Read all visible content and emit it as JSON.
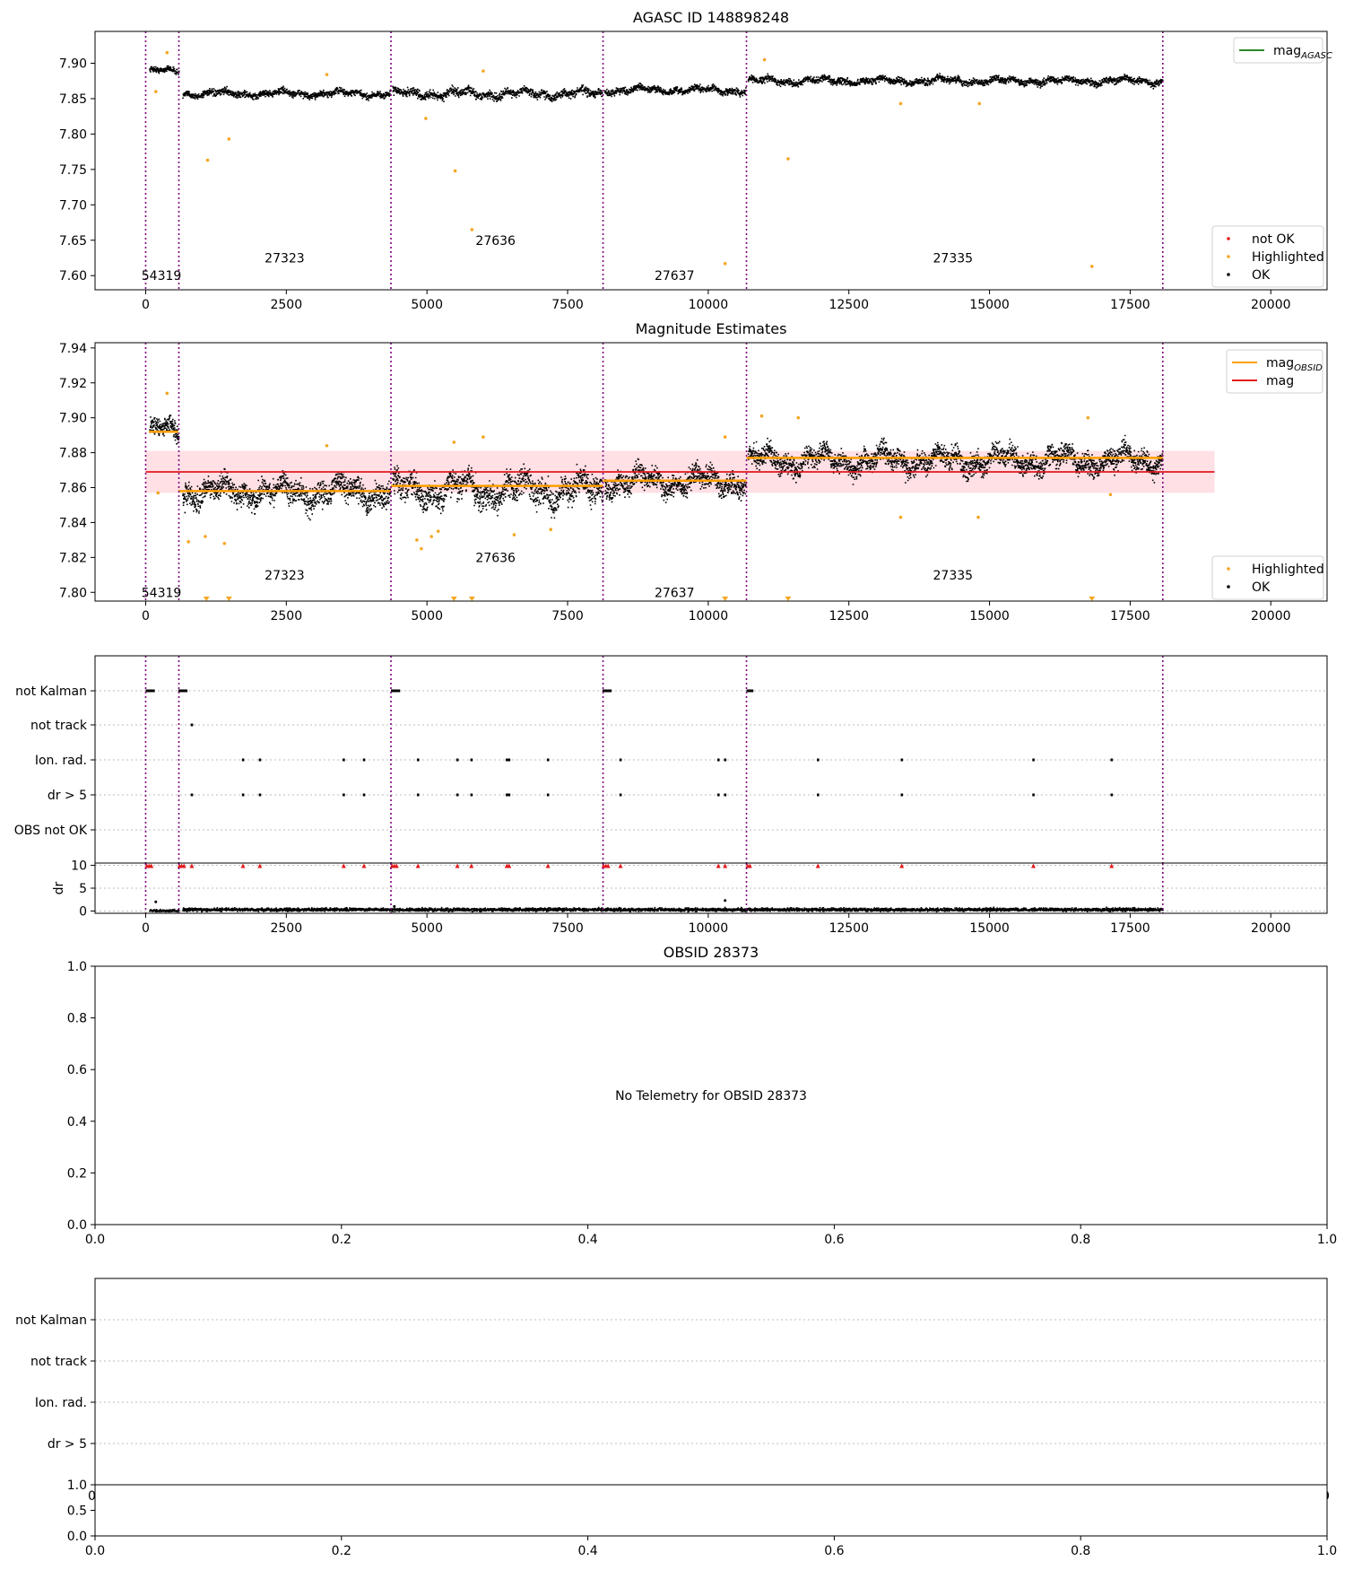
{
  "chart_data": [
    {
      "panel": "agasc",
      "type": "scatter",
      "title": "AGASC ID 148898248",
      "xlim": [
        -900,
        21000
      ],
      "ylim": [
        7.58,
        7.945
      ],
      "xticks": [
        0,
        2500,
        5000,
        7500,
        10000,
        12500,
        15000,
        17500,
        20000
      ],
      "yticks": [
        7.6,
        7.65,
        7.7,
        7.75,
        7.8,
        7.85,
        7.9
      ],
      "ytick_labels": [
        "7.60",
        "7.65",
        "7.70",
        "7.75",
        "7.80",
        "7.85",
        "7.90"
      ],
      "obs_boundaries": [
        0,
        590,
        4360,
        8130,
        10680,
        18080
      ],
      "obsid_labels": [
        {
          "text": "54319",
          "x": 280,
          "y": 7.6
        },
        {
          "text": "27323",
          "x": 2470,
          "y": 7.625
        },
        {
          "text": "27636",
          "x": 6220,
          "y": 7.65
        },
        {
          "text": "27637",
          "x": 9400,
          "y": 7.6
        },
        {
          "text": "27335",
          "x": 14350,
          "y": 7.625
        }
      ],
      "segments": [
        {
          "x0": 60,
          "x1": 580,
          "level": 7.89,
          "spread": 0.007
        },
        {
          "x0": 650,
          "x1": 4340,
          "level": 7.858,
          "spread": 0.008
        },
        {
          "x0": 4380,
          "x1": 8110,
          "level": 7.858,
          "spread": 0.01
        },
        {
          "x0": 8150,
          "x1": 10660,
          "level": 7.863,
          "spread": 0.008
        },
        {
          "x0": 10700,
          "x1": 18070,
          "level": 7.876,
          "spread": 0.008
        }
      ],
      "highlighted_points": [
        {
          "x": 1100,
          "y": 7.763
        },
        {
          "x": 1480,
          "y": 7.793
        },
        {
          "x": 5500,
          "y": 7.748
        },
        {
          "x": 5800,
          "y": 7.665
        },
        {
          "x": 10300,
          "y": 7.617
        },
        {
          "x": 11420,
          "y": 7.765
        },
        {
          "x": 16820,
          "y": 7.613
        },
        {
          "x": 13420,
          "y": 7.843
        },
        {
          "x": 14820,
          "y": 7.843
        },
        {
          "x": 4980,
          "y": 7.822
        },
        {
          "x": 180,
          "y": 7.86
        },
        {
          "x": 380,
          "y": 7.915
        },
        {
          "x": 3220,
          "y": 7.884
        },
        {
          "x": 6000,
          "y": 7.889
        },
        {
          "x": 11000,
          "y": 7.905
        }
      ],
      "legend_lines": [
        {
          "name": "mag",
          "sub": "AGASC",
          "color": "#2a8a2a"
        }
      ],
      "legend_markers": [
        {
          "name": "not OK",
          "color": "#e31a1c"
        },
        {
          "name": "Highlighted",
          "color": "#f5a623"
        },
        {
          "name": "OK",
          "color": "#000000"
        }
      ]
    },
    {
      "panel": "mag",
      "type": "scatter",
      "title": "Magnitude Estimates",
      "xlim": [
        -900,
        21000
      ],
      "ylim": [
        7.795,
        7.943
      ],
      "xticks": [
        0,
        2500,
        5000,
        7500,
        10000,
        12500,
        15000,
        17500,
        20000
      ],
      "yticks": [
        7.8,
        7.82,
        7.84,
        7.86,
        7.88,
        7.9,
        7.92,
        7.94
      ],
      "ytick_labels": [
        "7.80",
        "7.82",
        "7.84",
        "7.86",
        "7.88",
        "7.90",
        "7.92",
        "7.94"
      ],
      "obs_boundaries": [
        0,
        590,
        4360,
        8130,
        10680,
        18080
      ],
      "obsid_labels": [
        {
          "text": "54319",
          "x": 280,
          "y": 7.8
        },
        {
          "text": "27323",
          "x": 2470,
          "y": 7.81
        },
        {
          "text": "27636",
          "x": 6220,
          "y": 7.82
        },
        {
          "text": "27637",
          "x": 9400,
          "y": 7.8
        },
        {
          "text": "27335",
          "x": 14350,
          "y": 7.81
        }
      ],
      "mag_line": 7.869,
      "mag_band": [
        7.857,
        7.881
      ],
      "mag_band_x": [
        0,
        19000
      ],
      "obsid_levels": [
        {
          "x0": 60,
          "x1": 580,
          "y": 7.892
        },
        {
          "x0": 580,
          "x1": 4360,
          "y": 7.858
        },
        {
          "x0": 4360,
          "x1": 8130,
          "y": 7.861
        },
        {
          "x0": 8130,
          "x1": 10680,
          "y": 7.864
        },
        {
          "x0": 10680,
          "x1": 18080,
          "y": 7.877
        }
      ],
      "segments": [
        {
          "x0": 60,
          "x1": 580,
          "level": 7.893,
          "spread": 0.009
        },
        {
          "x0": 650,
          "x1": 4340,
          "level": 7.858,
          "spread": 0.012
        },
        {
          "x0": 4380,
          "x1": 8110,
          "level": 7.859,
          "spread": 0.014
        },
        {
          "x0": 8150,
          "x1": 10660,
          "level": 7.864,
          "spread": 0.011
        },
        {
          "x0": 10700,
          "x1": 18070,
          "level": 7.876,
          "spread": 0.011
        }
      ],
      "highlighted_points": [
        {
          "x": 220,
          "y": 7.857
        },
        {
          "x": 380,
          "y": 7.914
        },
        {
          "x": 760,
          "y": 7.829
        },
        {
          "x": 1060,
          "y": 7.832
        },
        {
          "x": 1400,
          "y": 7.828
        },
        {
          "x": 3220,
          "y": 7.884
        },
        {
          "x": 4820,
          "y": 7.83
        },
        {
          "x": 4900,
          "y": 7.825
        },
        {
          "x": 5080,
          "y": 7.832
        },
        {
          "x": 5200,
          "y": 7.835
        },
        {
          "x": 5480,
          "y": 7.886
        },
        {
          "x": 6000,
          "y": 7.889
        },
        {
          "x": 6550,
          "y": 7.833
        },
        {
          "x": 7200,
          "y": 7.836
        },
        {
          "x": 10300,
          "y": 7.889
        },
        {
          "x": 10950,
          "y": 7.901
        },
        {
          "x": 11600,
          "y": 7.9
        },
        {
          "x": 13420,
          "y": 7.843
        },
        {
          "x": 14800,
          "y": 7.843
        },
        {
          "x": 16750,
          "y": 7.9
        },
        {
          "x": 17150,
          "y": 7.856
        }
      ],
      "off_scale_markers": [
        1080,
        1480,
        5480,
        5800,
        10300,
        11420,
        16820
      ],
      "legend_lines": [
        {
          "name": "mag",
          "sub": "OBSID",
          "color": "#ff9f00"
        },
        {
          "name": "mag",
          "sub": "",
          "color": "#e31a1c"
        }
      ],
      "legend_markers": [
        {
          "name": "Highlighted",
          "color": "#f5a623"
        },
        {
          "name": "OK",
          "color": "#000000"
        }
      ]
    },
    {
      "panel": "flags",
      "type": "scatter",
      "xlim": [
        -900,
        21000
      ],
      "categories": [
        "not Kalman",
        "not track",
        "Ion. rad.",
        "dr > 5",
        "OBS not OK"
      ],
      "flag_points": {
        "not Kalman": [
          20,
          60,
          100,
          140,
          600,
          640,
          680,
          720,
          4380,
          4420,
          4460,
          4500,
          8140,
          8180,
          8220,
          8260,
          10700,
          10740,
          10780
        ],
        "not track": [
          820
        ],
        "Ion. rad.": [
          1730,
          2030,
          3520,
          3880,
          4840,
          5540,
          5790,
          6420,
          6460,
          7150,
          8440,
          10180,
          10300,
          11950,
          13440,
          15780,
          17170
        ],
        "dr > 5": [
          820,
          1730,
          2030,
          3520,
          3880,
          4840,
          5540,
          5790,
          6420,
          6460,
          7150,
          8440,
          10180,
          10300,
          11950,
          13440,
          15780,
          17170
        ]
      },
      "obs_boundaries": [
        0,
        590,
        4360,
        8130,
        10680,
        18080
      ]
    },
    {
      "panel": "dr",
      "type": "scatter",
      "xlim": [
        -900,
        21000
      ],
      "ylim": [
        -0.5,
        10.5
      ],
      "ylabel": "dr",
      "yticks": [
        0,
        5,
        10
      ],
      "xticks": [
        0,
        2500,
        5000,
        7500,
        10000,
        12500,
        15000,
        17500,
        20000
      ],
      "segments": [
        {
          "x0": 60,
          "x1": 580,
          "level": 0.2,
          "spread": 0.25
        },
        {
          "x0": 650,
          "x1": 18070,
          "level": 0.45,
          "spread": 0.35
        }
      ],
      "outlier_points": [
        {
          "x": 180,
          "y": 2.0
        },
        {
          "x": 10300,
          "y": 2.3
        },
        {
          "x": 4420,
          "y": 1.0
        }
      ],
      "clipped_markers": [
        20,
        60,
        100,
        600,
        640,
        680,
        820,
        1730,
        2030,
        3520,
        3880,
        4380,
        4420,
        4460,
        4840,
        5540,
        5790,
        6420,
        6460,
        7150,
        8140,
        8180,
        8220,
        8440,
        10180,
        10300,
        10700,
        10740,
        11950,
        13440,
        15780,
        17170
      ],
      "obs_boundaries": [
        0,
        590,
        4360,
        8130,
        10680,
        18080
      ]
    },
    {
      "panel": "obsid",
      "type": "scatter",
      "title": "OBSID 28373",
      "message": "No Telemetry for OBSID 28373",
      "xlim": [
        0,
        1
      ],
      "ylim": [
        0,
        1
      ],
      "xticks": [
        0,
        0.2,
        0.4,
        0.6,
        0.8,
        1.0
      ],
      "yticks": [
        0,
        0.2,
        0.4,
        0.6,
        0.8,
        1.0
      ],
      "tick_labels": [
        "0.0",
        "0.2",
        "0.4",
        "0.6",
        "0.8",
        "1.0"
      ]
    },
    {
      "panel": "obsid_flags",
      "type": "scatter",
      "categories": [
        "not Kalman",
        "not track",
        "Ion. rad.",
        "dr > 5"
      ],
      "overlap_labels": [
        "0",
        "0"
      ]
    },
    {
      "panel": "obsid_dr",
      "type": "scatter",
      "xlim": [
        0,
        1
      ],
      "ylim": [
        0,
        1
      ],
      "yticks": [
        0,
        0.5,
        1.0
      ],
      "ytick_labels": [
        "0.0",
        "0.5",
        "1.0"
      ],
      "xticks": [
        0,
        0.2,
        0.4,
        0.6,
        0.8,
        1.0
      ],
      "tick_labels": [
        "0.0",
        "0.2",
        "0.4",
        "0.6",
        "0.8",
        "1.0"
      ]
    }
  ],
  "colors": {
    "ok": "#000000",
    "highlighted": "#f5a623",
    "not_ok": "#e31a1c",
    "boundary": "#800080",
    "agasc_line": "#2a8a2a",
    "obsid_line": "#ff9f00",
    "mag_line": "#e31a1c",
    "mag_band": "#ffd5dc"
  }
}
